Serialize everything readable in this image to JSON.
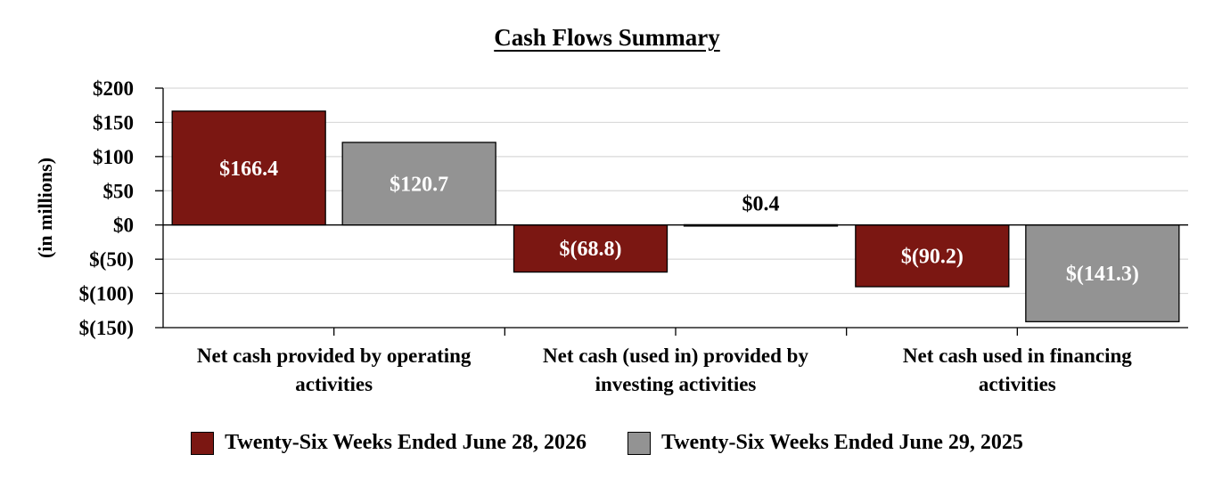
{
  "chart_data": {
    "type": "bar",
    "title": "Cash Flows Summary",
    "ylabel": "(in millions)",
    "xlabel": "",
    "ylim": [
      -150,
      200
    ],
    "yticks": [
      200,
      150,
      100,
      50,
      0,
      -50,
      -100,
      -150
    ],
    "ytick_labels": [
      "$200",
      "$150",
      "$100",
      "$50",
      "$0",
      "$(50)",
      "$(100)",
      "$(150)"
    ],
    "categories": [
      [
        "Net cash provided by operating",
        "activities"
      ],
      [
        "Net cash (used in) provided by",
        "investing activities"
      ],
      [
        "Net cash used in financing",
        "activities"
      ]
    ],
    "series": [
      {
        "name": "Twenty-Six Weeks Ended June 28, 2026",
        "color": "#7b1712",
        "values": [
          166.4,
          -68.8,
          -90.2
        ],
        "labels": [
          "$166.4",
          "$(68.8)",
          "$(90.2)"
        ]
      },
      {
        "name": "Twenty-Six Weeks Ended June 29, 2025",
        "color": "#939393",
        "values": [
          120.7,
          0.4,
          -141.3
        ],
        "labels": [
          "$120.7",
          "$0.4",
          "$(141.3)"
        ]
      }
    ],
    "grid": true,
    "legend_position": "bottom"
  }
}
